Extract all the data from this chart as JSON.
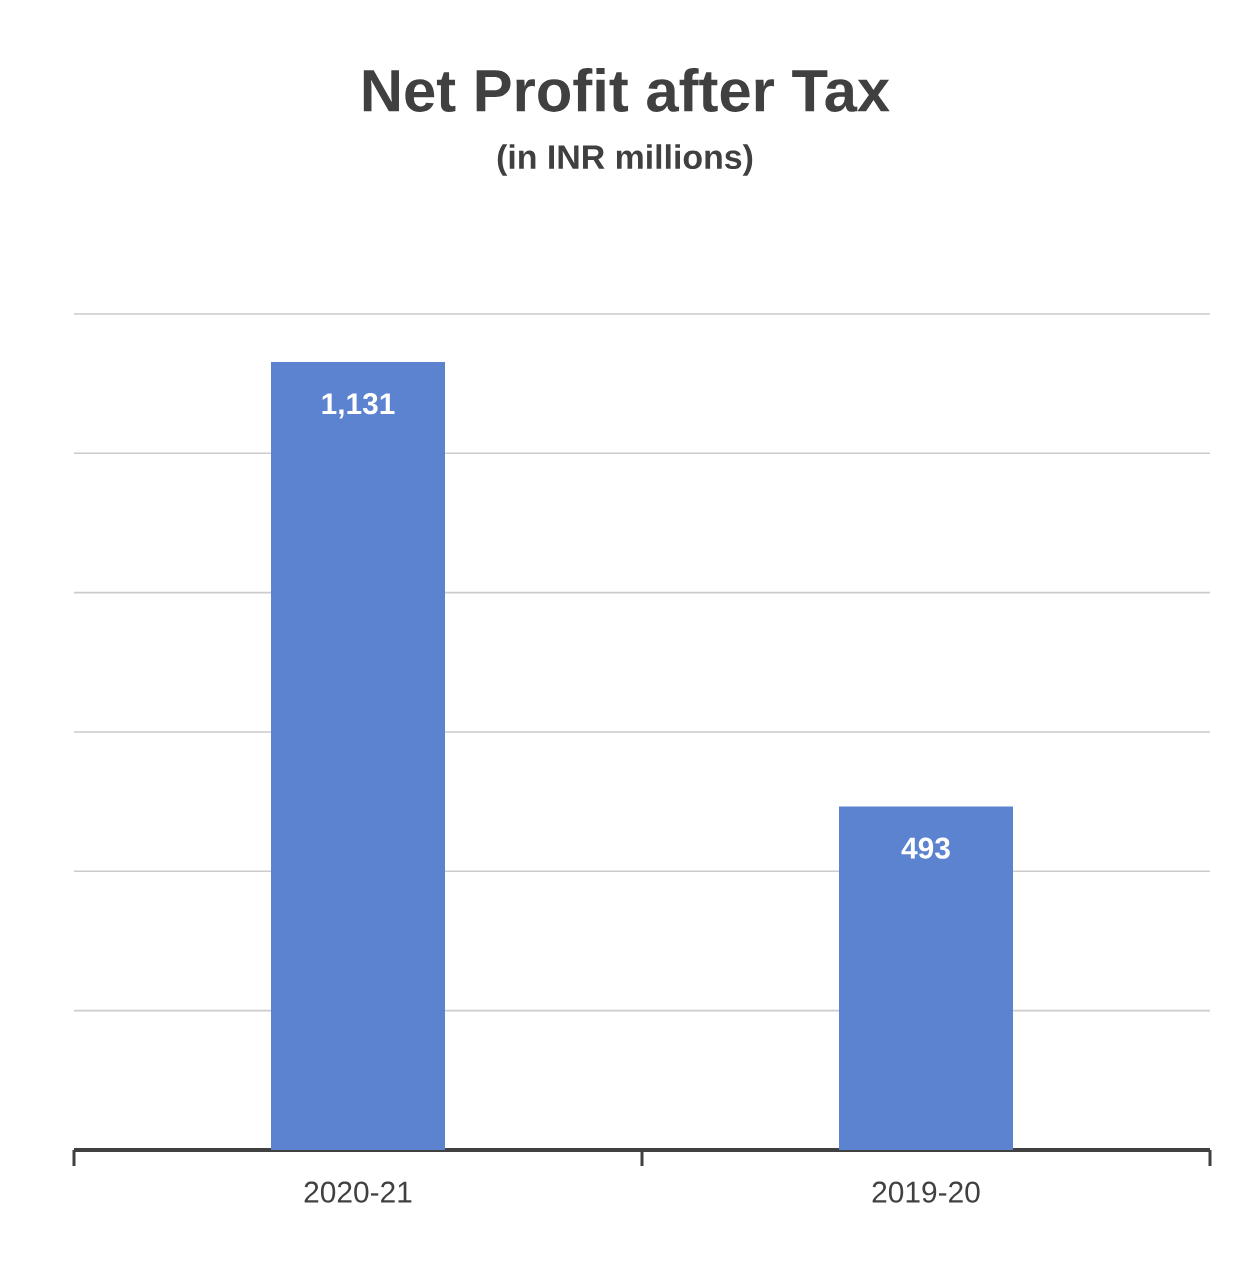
{
  "chart_data": {
    "type": "bar",
    "title": "Net Profit after Tax",
    "subtitle": "(in INR millions)",
    "categories": [
      "2020-21",
      "2019-20"
    ],
    "values": [
      1131,
      493
    ],
    "value_labels": [
      "1,131",
      "493"
    ],
    "color": "#5b83cf",
    "grid": "y",
    "tick_labels": "x"
  }
}
